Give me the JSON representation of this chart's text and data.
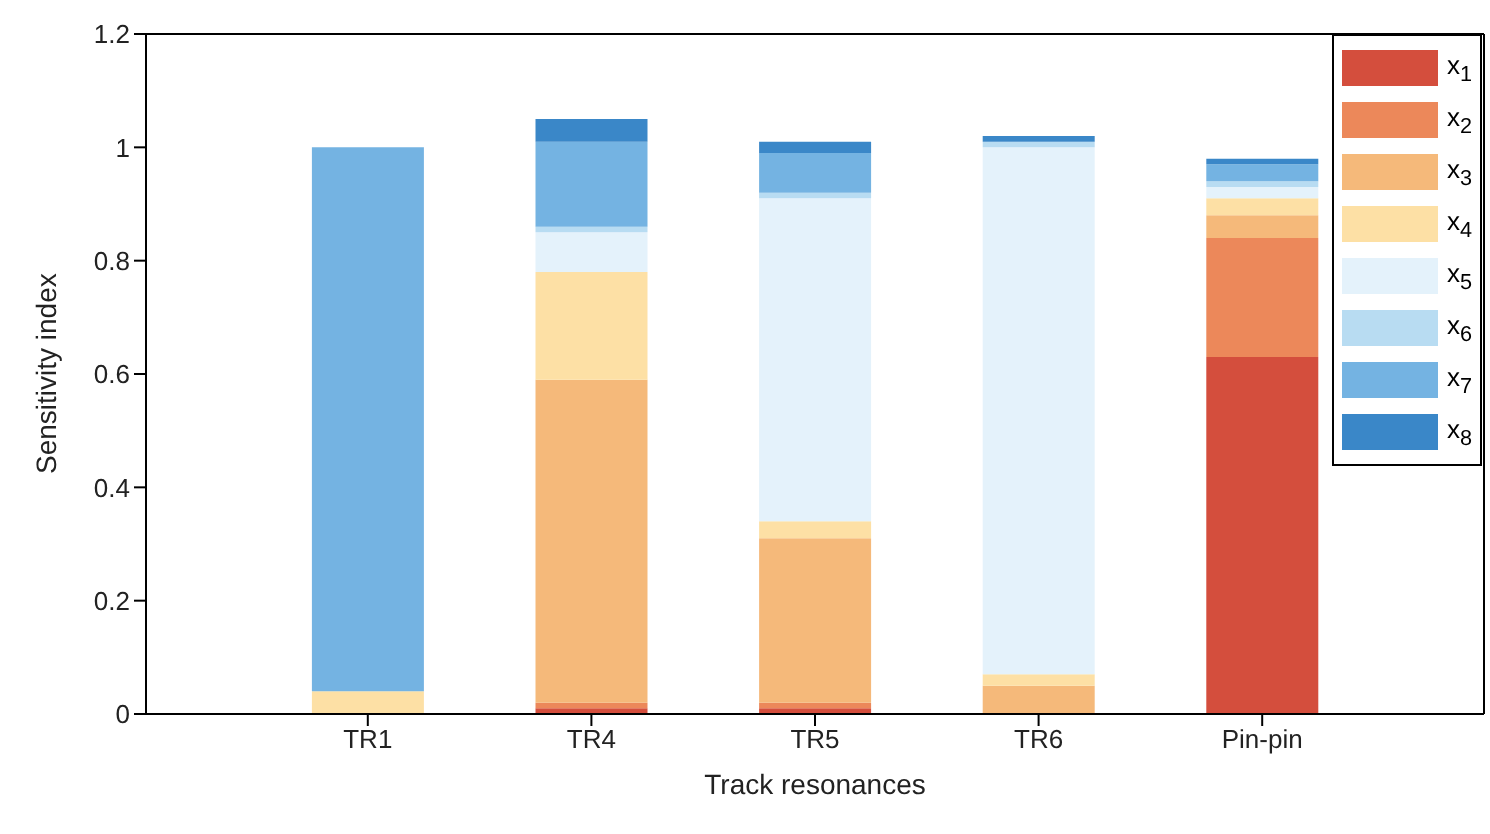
{
  "chart_data": {
    "type": "bar",
    "stacked": true,
    "xlabel": "Track resonances",
    "ylabel": "Sensitivity index",
    "categories": [
      "TR1",
      "TR4",
      "TR5",
      "TR6",
      "Pin-pin"
    ],
    "series": [
      {
        "name": "x$_{1}$",
        "color": "#d44e3d",
        "values": [
          0,
          0.01,
          0.01,
          0,
          0.63
        ]
      },
      {
        "name": "x$_{2}$",
        "color": "#ec885a",
        "values": [
          0,
          0.01,
          0.01,
          0,
          0.21
        ]
      },
      {
        "name": "x$_{3}$",
        "color": "#f5b97a",
        "values": [
          0,
          0.57,
          0.29,
          0.05,
          0.04
        ]
      },
      {
        "name": "x$_{4}$",
        "color": "#fde0a5",
        "values": [
          0.04,
          0.19,
          0.03,
          0.02,
          0.03
        ]
      },
      {
        "name": "x$_{5}$",
        "color": "#e4f2fb",
        "values": [
          0,
          0.07,
          0.57,
          0.93,
          0.02
        ]
      },
      {
        "name": "x$_{6}$",
        "color": "#b8dcf2",
        "values": [
          0,
          0.01,
          0.01,
          0.01,
          0.01
        ]
      },
      {
        "name": "x$_{7}$",
        "color": "#74b3e2",
        "values": [
          0.96,
          0.15,
          0.07,
          0,
          0.03
        ]
      },
      {
        "name": "x$_{8}$",
        "color": "#3a87c8",
        "values": [
          0,
          0.04,
          0.02,
          0.01,
          0.01
        ]
      }
    ],
    "ylim": [
      0,
      1.2
    ],
    "yticks": [
      0,
      0.2,
      0.4,
      0.6,
      0.8,
      1,
      1.2
    ],
    "grid": false,
    "legend": "top right"
  }
}
